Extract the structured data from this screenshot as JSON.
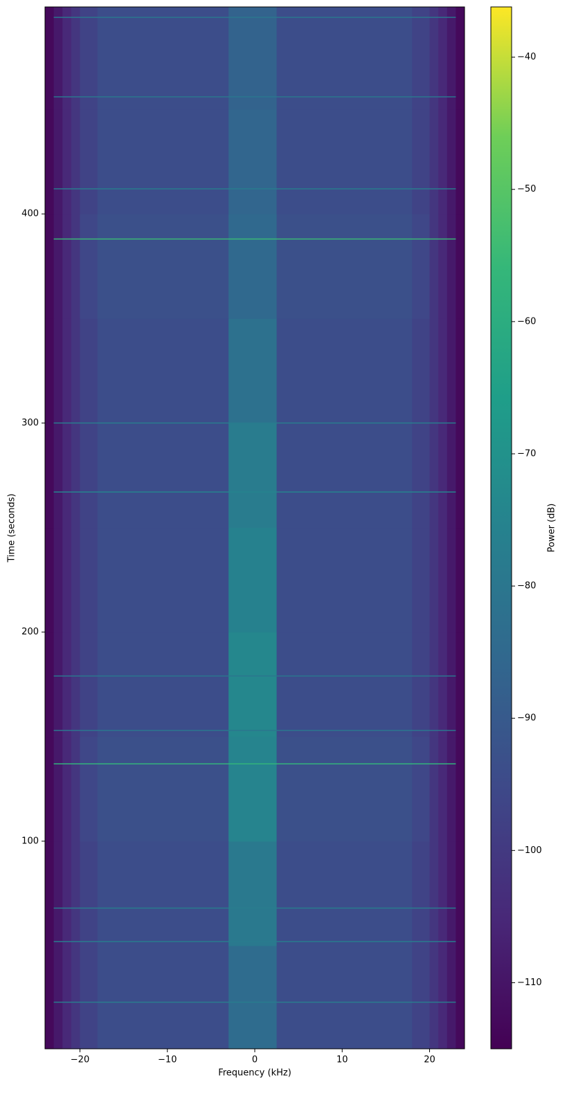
{
  "chart_data": {
    "type": "spectrogram",
    "colormap": "viridis",
    "xlabel": "Frequency (kHz)",
    "ylabel": "Time (seconds)",
    "colorbar_label": "Power (dB)",
    "xlim": [
      -24,
      24
    ],
    "ylim": [
      0.7,
      499
    ],
    "clim": [
      -115,
      -36.2
    ],
    "xticks": [
      {
        "value": -20,
        "label": "−20"
      },
      {
        "value": -10,
        "label": "−10"
      },
      0,
      10,
      20
    ],
    "yticks": [
      100,
      200,
      300,
      400
    ],
    "cticks": [
      {
        "value": -40,
        "label": "−40"
      },
      {
        "value": -50,
        "label": "−50"
      },
      {
        "value": -60,
        "label": "−60"
      },
      {
        "value": -70,
        "label": "−70"
      },
      {
        "value": -80,
        "label": "−80"
      },
      {
        "value": -90,
        "label": "−90"
      },
      {
        "value": -100,
        "label": "−100"
      },
      {
        "value": -110,
        "label": "−110"
      }
    ],
    "freq_bins": [
      -24,
      -23,
      -22,
      -21,
      -20,
      -18,
      -3,
      2.5,
      18,
      20,
      21,
      22,
      23,
      24
    ],
    "time_bins": [
      0.7,
      50,
      100,
      150,
      200,
      250,
      300,
      350,
      400,
      450,
      499
    ],
    "z": [
      [
        -113,
        -109,
        -105,
        -101,
        -97,
        -94,
        -84,
        -94,
        -97,
        -101,
        -105,
        -109,
        -113
      ],
      [
        -113,
        -109,
        -105,
        -101,
        -97,
        -94,
        -79,
        -94,
        -97,
        -101,
        -105,
        -109,
        -113
      ],
      [
        -113,
        -109,
        -105,
        -101,
        -96,
        -93,
        -75,
        -93,
        -96,
        -101,
        -105,
        -109,
        -113
      ],
      [
        -113,
        -109,
        -105,
        -101,
        -97,
        -94,
        -74,
        -94,
        -97,
        -101,
        -105,
        -109,
        -113
      ],
      [
        -113,
        -109,
        -105,
        -101,
        -97,
        -94,
        -76,
        -94,
        -97,
        -101,
        -105,
        -109,
        -113
      ],
      [
        -113,
        -109,
        -105,
        -101,
        -97,
        -94,
        -78,
        -94,
        -97,
        -101,
        -105,
        -109,
        -113
      ],
      [
        -113,
        -109,
        -105,
        -101,
        -97,
        -94,
        -82,
        -94,
        -97,
        -101,
        -105,
        -109,
        -113
      ],
      [
        -113,
        -109,
        -105,
        -101,
        -96,
        -93,
        -85,
        -93,
        -96,
        -101,
        -105,
        -109,
        -113
      ],
      [
        -113,
        -109,
        -105,
        -101,
        -97,
        -94,
        -86,
        -94,
        -97,
        -101,
        -105,
        -109,
        -113
      ],
      [
        -113,
        -109,
        -105,
        -101,
        -97,
        -94,
        -87,
        -94,
        -97,
        -101,
        -105,
        -109,
        -113
      ]
    ],
    "lines": [
      {
        "time": 388,
        "power": -55
      },
      {
        "time": 137,
        "power": -57
      },
      {
        "time": 267,
        "power": -75
      },
      {
        "time": 300,
        "power": -78
      },
      {
        "time": 23,
        "power": -78
      },
      {
        "time": 52,
        "power": -78
      },
      {
        "time": 68,
        "power": -78
      },
      {
        "time": 153,
        "power": -80
      },
      {
        "time": 179,
        "power": -80
      },
      {
        "time": 412,
        "power": -78
      },
      {
        "time": 456,
        "power": -80
      },
      {
        "time": 494,
        "power": -80
      }
    ]
  }
}
